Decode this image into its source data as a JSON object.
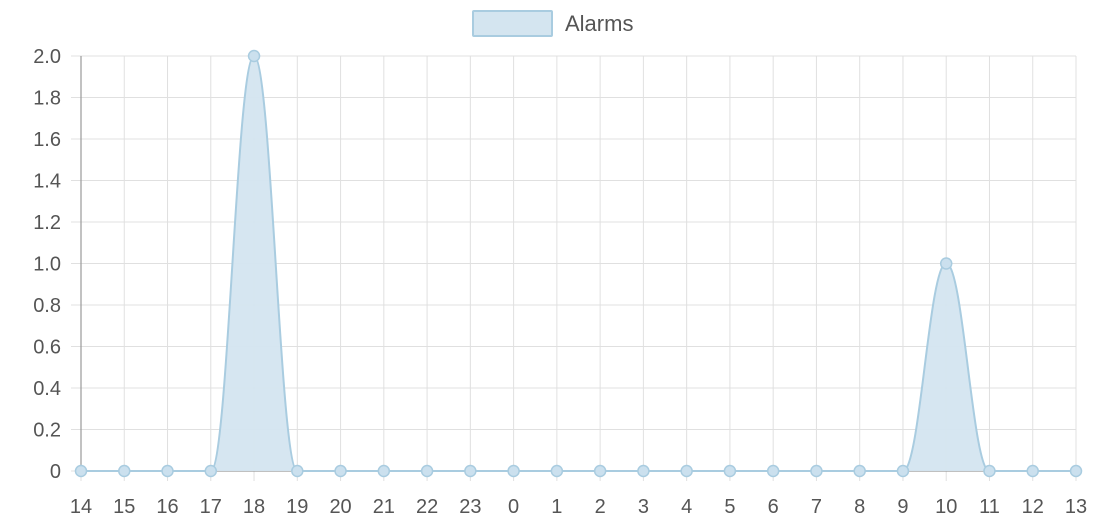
{
  "chart_data": {
    "type": "area",
    "categories": [
      "14",
      "15",
      "16",
      "17",
      "18",
      "19",
      "20",
      "21",
      "22",
      "23",
      "0",
      "1",
      "2",
      "3",
      "4",
      "5",
      "6",
      "7",
      "8",
      "9",
      "10",
      "11",
      "12",
      "13"
    ],
    "series": [
      {
        "name": "Alarms",
        "values": [
          0,
          0,
          0,
          0,
          2,
          0,
          0,
          0,
          0,
          0,
          0,
          0,
          0,
          0,
          0,
          0,
          0,
          0,
          0,
          0,
          1,
          0,
          0,
          0
        ]
      }
    ],
    "ylim": [
      0,
      2.0
    ],
    "yticks": [
      "0",
      "0.2",
      "0.4",
      "0.6",
      "0.8",
      "1.0",
      "1.2",
      "1.4",
      "1.6",
      "1.8",
      "2.0"
    ],
    "grid": true,
    "legend_position": "top",
    "colors": {
      "fill": "#d4e5f0",
      "stroke": "#a9cce0",
      "point": "#cbe0ee",
      "grid": "#e0e0e0",
      "axis": "#9a9a9a",
      "text": "#555555"
    }
  }
}
